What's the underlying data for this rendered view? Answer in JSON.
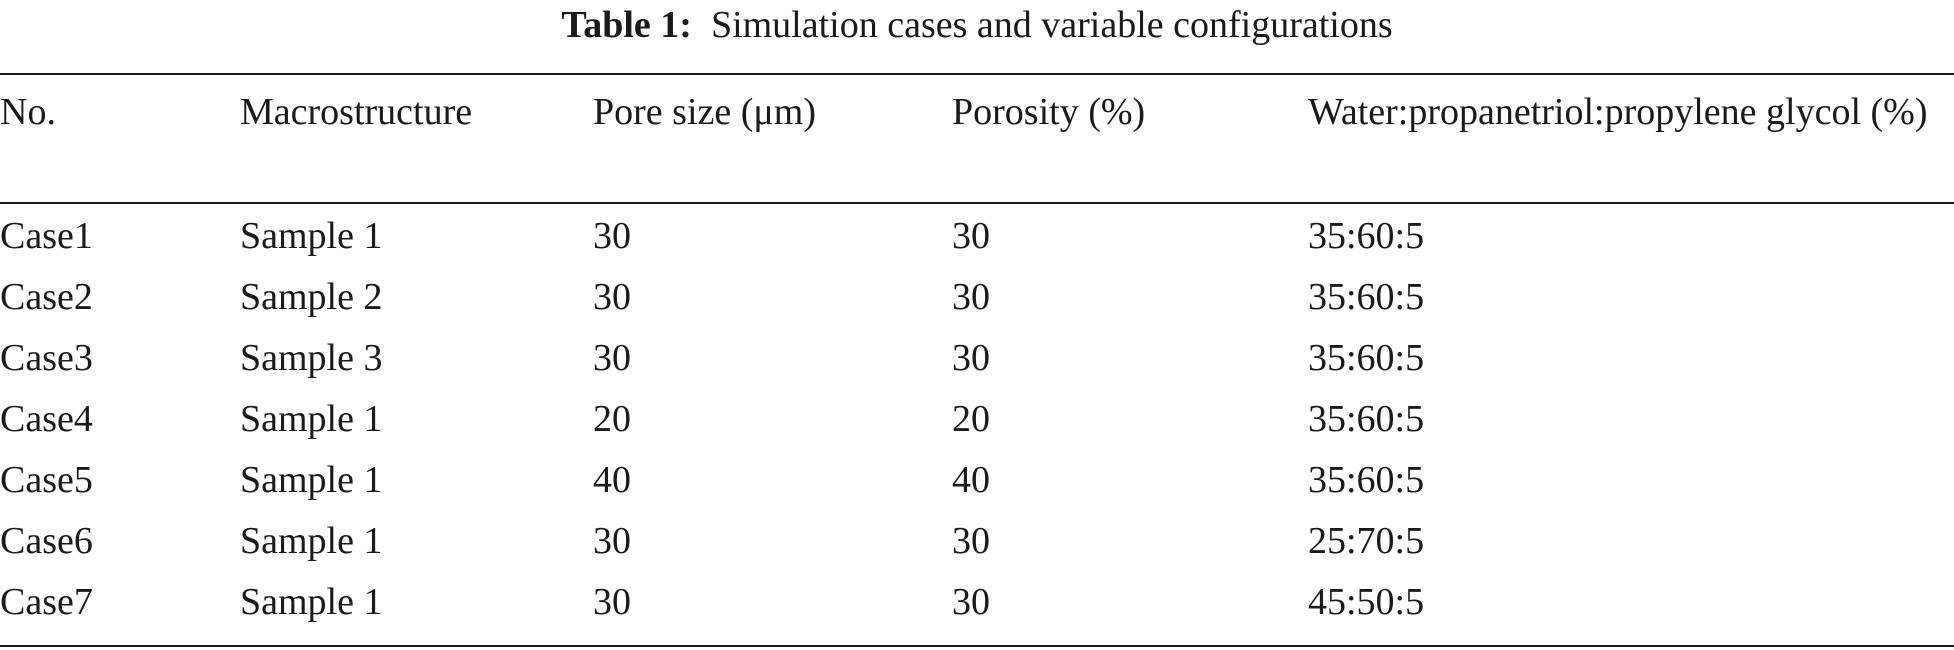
{
  "caption": {
    "label": "Table 1:",
    "title": "Simulation cases and variable configurations"
  },
  "table": {
    "headers": [
      "No.",
      "Macrostructure",
      "Pore size (μm)",
      "Porosity (%)",
      "Water:propanetriol:propylene glycol (%)"
    ],
    "rows": [
      [
        "Case1",
        "Sample 1",
        "30",
        "30",
        "35:60:5"
      ],
      [
        "Case2",
        "Sample 2",
        "30",
        "30",
        "35:60:5"
      ],
      [
        "Case3",
        "Sample 3",
        "30",
        "30",
        "35:60:5"
      ],
      [
        "Case4",
        "Sample 1",
        "20",
        "20",
        "35:60:5"
      ],
      [
        "Case5",
        "Sample 1",
        "40",
        "40",
        "35:60:5"
      ],
      [
        "Case6",
        "Sample 1",
        "30",
        "30",
        "25:70:5"
      ],
      [
        "Case7",
        "Sample 1",
        "30",
        "30",
        "45:50:5"
      ]
    ]
  }
}
